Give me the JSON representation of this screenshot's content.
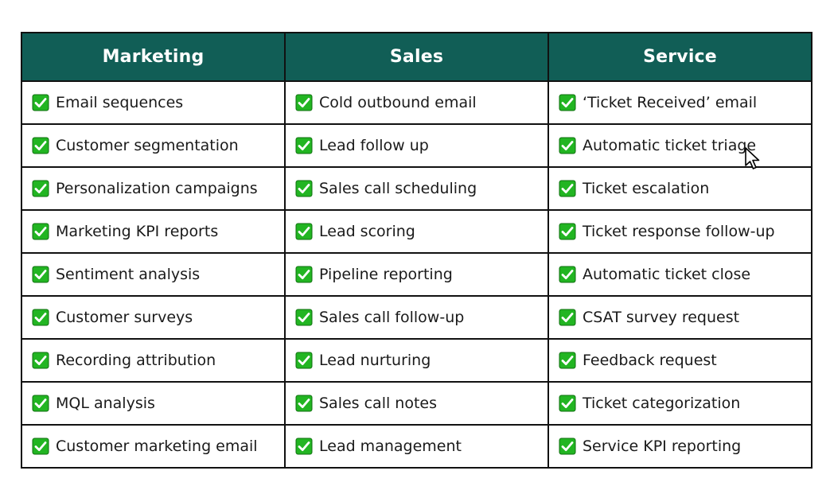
{
  "table": {
    "headers": [
      "Marketing",
      "Sales",
      "Service"
    ],
    "rows": [
      [
        "Email sequences",
        "Cold outbound email",
        "‘Ticket Received’ email"
      ],
      [
        "Customer segmentation",
        "Lead follow up",
        "Automatic ticket triage"
      ],
      [
        "Personalization campaigns",
        "Sales call scheduling",
        "Ticket escalation"
      ],
      [
        "Marketing KPI reports",
        "Lead scoring",
        "Ticket response follow-up"
      ],
      [
        "Sentiment analysis",
        "Pipeline reporting",
        "Automatic ticket close"
      ],
      [
        "Customer surveys",
        "Sales call follow-up",
        "CSAT survey request"
      ],
      [
        "Recording attribution",
        "Lead nurturing",
        "Feedback request"
      ],
      [
        "MQL analysis",
        "Sales call notes",
        "Ticket categorization"
      ],
      [
        "Customer marketing email",
        "Lead management",
        "Service KPI reporting"
      ]
    ]
  },
  "colors": {
    "header_bg": "#115e56",
    "header_text": "#ffffff",
    "check_green": "#22b522",
    "border": "#111111"
  },
  "icons": {
    "row_marker": "check-mark-icon",
    "pointer": "mouse-cursor-icon"
  }
}
